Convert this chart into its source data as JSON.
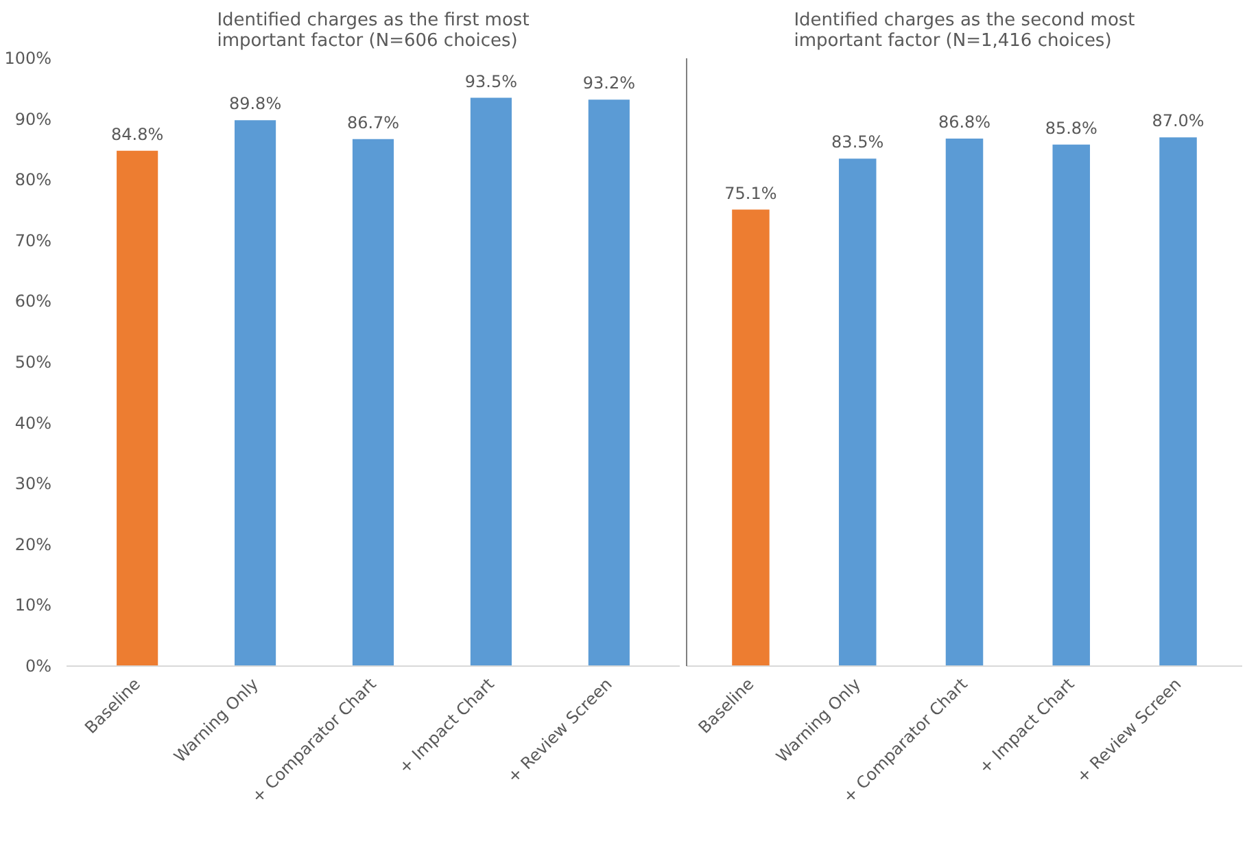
{
  "chart_data": [
    {
      "type": "bar",
      "title": "Identified charges as the first most important factor (N=606 choices)",
      "categories": [
        "Baseline",
        "Warning Only",
        "+ Comparator Chart",
        "+ Impact Chart",
        "+ Review Screen"
      ],
      "values": [
        84.8,
        89.8,
        86.7,
        93.5,
        93.2
      ],
      "colors": [
        "#ed7d31",
        "#5b9bd5",
        "#5b9bd5",
        "#5b9bd5",
        "#5b9bd5"
      ],
      "value_labels": [
        "84.8%",
        "89.8%",
        "86.7%",
        "93.5%",
        "93.2%"
      ],
      "ylim": [
        0,
        100
      ],
      "yticks": [
        {
          "value": 0,
          "label": "0%"
        },
        {
          "value": 10,
          "label": "10%"
        },
        {
          "value": 20,
          "label": "20%"
        },
        {
          "value": 30,
          "label": "30%"
        },
        {
          "value": 40,
          "label": "40%"
        },
        {
          "value": 50,
          "label": "50%"
        },
        {
          "value": 60,
          "label": "60%"
        },
        {
          "value": 70,
          "label": "70%"
        },
        {
          "value": 80,
          "label": "80%"
        },
        {
          "value": 90,
          "label": "90%"
        },
        {
          "value": 100,
          "label": "100%"
        }
      ]
    },
    {
      "type": "bar",
      "title": "Identified charges as the second most important factor (N=1,416 choices)",
      "categories": [
        "Baseline",
        "Warning Only",
        "+ Comparator Chart",
        "+ Impact Chart",
        "+ Review Screen"
      ],
      "values": [
        75.1,
        83.5,
        86.8,
        85.8,
        87.0
      ],
      "colors": [
        "#ed7d31",
        "#5b9bd5",
        "#5b9bd5",
        "#5b9bd5",
        "#5b9bd5"
      ],
      "value_labels": [
        "75.1%",
        "83.5%",
        "86.8%",
        "85.8%",
        "87.0%"
      ],
      "ylim": [
        0,
        100
      ],
      "tick_labels": "x"
    }
  ]
}
